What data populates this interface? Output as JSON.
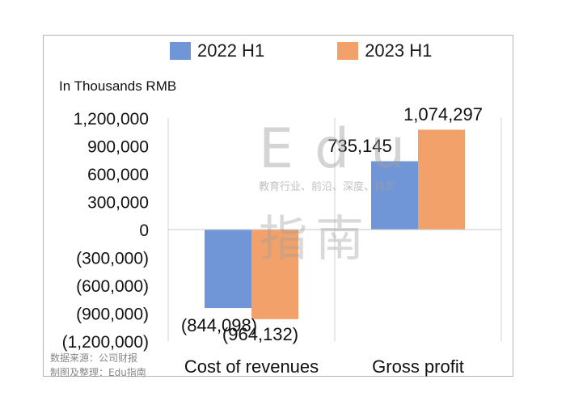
{
  "chart_data": {
    "type": "bar",
    "units_label": "In Thousands RMB",
    "categories": [
      "Cost of revenues",
      "Gross profit"
    ],
    "series": [
      {
        "name": "2022 H1",
        "color": "#7096d8",
        "values": [
          -844098,
          735145
        ],
        "labels": [
          "(844,098)",
          "735,145"
        ]
      },
      {
        "name": "2023 H1",
        "color": "#f2a16a",
        "values": [
          -964132,
          1074297
        ],
        "labels": [
          "(964,132)",
          "1,074,297"
        ]
      }
    ],
    "ylim": [
      -1200000,
      1200000
    ],
    "yticks": [
      1200000,
      900000,
      600000,
      300000,
      0,
      -300000,
      -600000,
      -900000,
      -1200000
    ],
    "ytick_labels": [
      "1,200,000",
      "900,000",
      "600,000",
      "300,000",
      "0",
      "(300,000)",
      "(600,000)",
      "(900,000)",
      "(1,200,000)"
    ],
    "grid": "vertical-only",
    "legend_position": "top"
  },
  "source_note": [
    "数据来源：公司财报",
    "制图及整理：Edu指南"
  ],
  "watermark": {
    "big": "Edu",
    "sub": "教育行业、前沿、深度、独家",
    "cn": "指南"
  }
}
